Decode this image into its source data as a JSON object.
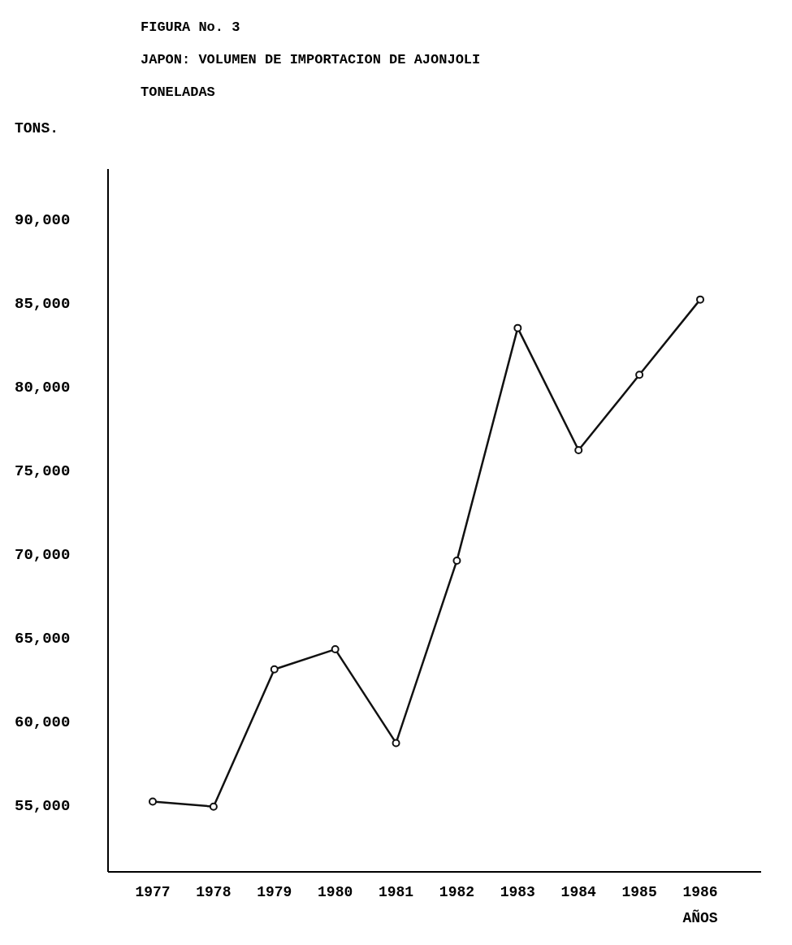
{
  "chart_data": {
    "type": "line",
    "title": "FIGURA No. 3",
    "subtitle": "JAPON: VOLUMEN DE IMPORTACION DE AJONJOLI",
    "annotations": [
      "TONELADAS"
    ],
    "ylabel": "TONS.",
    "xlabel": "AÑOS",
    "categories": [
      "1977",
      "1978",
      "1979",
      "1980",
      "1981",
      "1982",
      "1983",
      "1984",
      "1985",
      "1986"
    ],
    "series": [
      {
        "color": "#111111",
        "values": [
          55200,
          54900,
          63100,
          64300,
          58700,
          69600,
          83500,
          76200,
          80700,
          85200
        ]
      }
    ],
    "ylim": [
      51000,
      93000
    ],
    "yticks": [
      {
        "value": 55000,
        "label": "55,000"
      },
      {
        "value": 60000,
        "label": "60,000"
      },
      {
        "value": 65000,
        "label": "65,000"
      },
      {
        "value": 70000,
        "label": "70,000"
      },
      {
        "value": 75000,
        "label": "75,000"
      },
      {
        "value": 80000,
        "label": "80,000"
      },
      {
        "value": 85000,
        "label": "85,000"
      },
      {
        "value": 90000,
        "label": "90,000"
      }
    ],
    "marker": "circle",
    "line_style": "solid",
    "grid": false
  }
}
